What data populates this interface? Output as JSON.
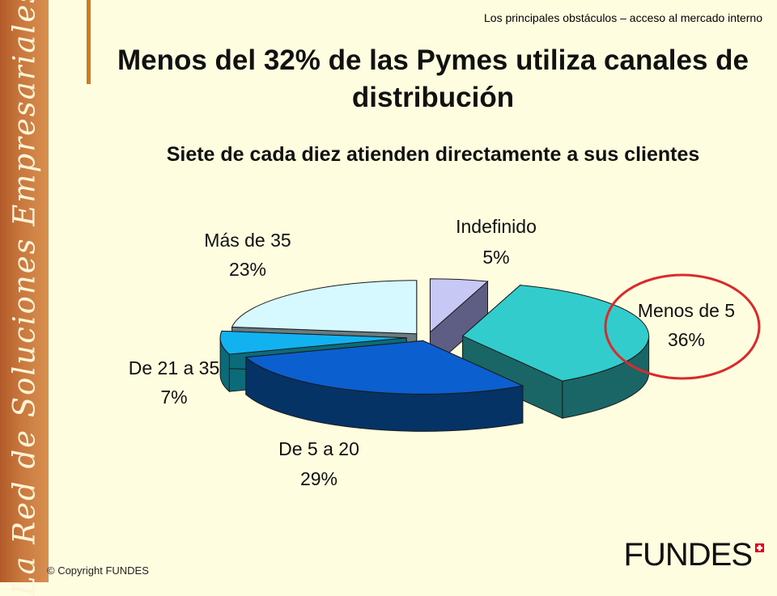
{
  "sidebar": {
    "text": "La Red de Soluciones Empresariales"
  },
  "header": {
    "caption": "Los principales obstáculos – acceso al mercado interno",
    "title": "Menos del 32% de las Pymes utiliza canales de distribución",
    "subtitle": "Siete de cada diez atienden directamente a sus clientes"
  },
  "chart_data": {
    "type": "pie",
    "style": "3d-exploded",
    "start_angle_deg": 90,
    "direction": "clockwise",
    "slices": [
      {
        "label": "Indefinido",
        "pct_label": "5%",
        "value": 5,
        "color": "#c8c8f4",
        "side_color": "#5e5e84"
      },
      {
        "label": "Menos de 5",
        "pct_label": "36%",
        "value": 36,
        "color": "#33cccc",
        "side_color": "#1a6666",
        "highlighted": true
      },
      {
        "label": "De 5 a 20",
        "pct_label": "29%",
        "value": 29,
        "color": "#0b5fcf",
        "side_color": "#063366"
      },
      {
        "label": "De 21 a 35",
        "pct_label": "7%",
        "value": 7,
        "color": "#12b2f0",
        "side_color": "#0b6b78"
      },
      {
        "label": "Más de 35",
        "pct_label": "23%",
        "value": 23,
        "color": "#d6f8ff",
        "side_color": "#6a7c80"
      }
    ],
    "highlight_color": "#d92b2b"
  },
  "footer": {
    "copyright": "© Copyright FUNDES",
    "logo_text": "FUNDES"
  }
}
